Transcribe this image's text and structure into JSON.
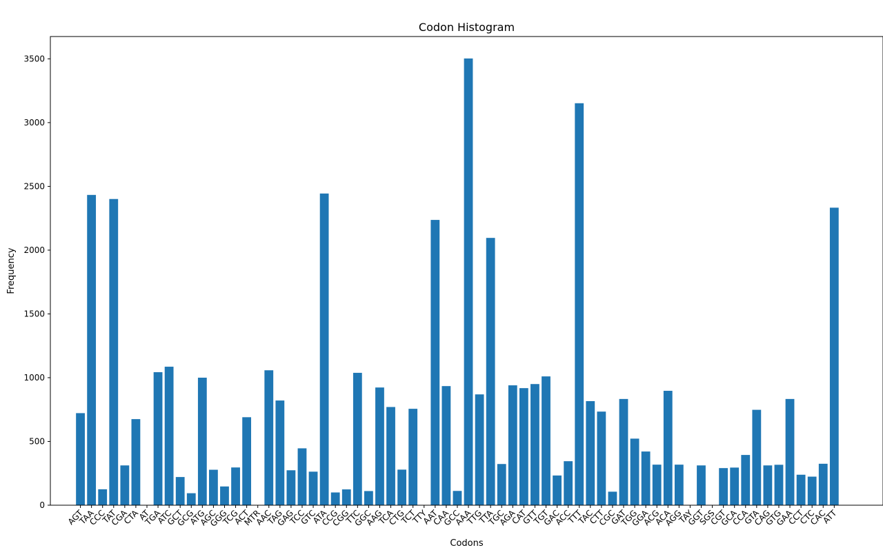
{
  "chart_data": {
    "type": "bar",
    "title": "Codon Histogram",
    "xlabel": "Codons",
    "ylabel": "Frequency",
    "ylim": [
      0,
      3675
    ],
    "yticks": [
      0,
      500,
      1000,
      1500,
      2000,
      2500,
      3000,
      3500
    ],
    "grid": false,
    "bar_color": "#1f77b4",
    "categories": [
      "AGT",
      "TAA",
      "CCC",
      "TAT",
      "CGA",
      "CTA",
      "AT",
      "TGA",
      "ATC",
      "GCT",
      "GCG",
      "ATG",
      "AGC",
      "GGG",
      "TCG",
      "ACT",
      "MTR",
      "AAC",
      "TAG",
      "GAG",
      "TCC",
      "GTC",
      "ATA",
      "CCG",
      "CGG",
      "TTC",
      "GGC",
      "AAG",
      "TCA",
      "CTG",
      "TCT",
      "TTY",
      "AAT",
      "CAA",
      "GCC",
      "AAA",
      "TTG",
      "TTA",
      "TGC",
      "AGA",
      "CAT",
      "GTT",
      "TGT",
      "GAC",
      "ACC",
      "TTT",
      "TAC",
      "CTT",
      "CGC",
      "GAT",
      "TGG",
      "GGA",
      "ACG",
      "ACA",
      "AGG",
      "TAY",
      "GGT",
      "SGS",
      "CGT",
      "GCA",
      "CCA",
      "GTA",
      "CAG",
      "GTG",
      "GAA",
      "CCT",
      "CTC",
      "CAC",
      "ATT"
    ],
    "values": [
      722,
      2433,
      125,
      2401,
      312,
      675,
      2,
      1043,
      1086,
      221,
      94,
      1000,
      278,
      147,
      296,
      690,
      2,
      1058,
      821,
      274,
      446,
      263,
      2444,
      100,
      124,
      1038,
      111,
      923,
      770,
      279,
      756,
      2,
      2237,
      934,
      112,
      3503,
      869,
      2096,
      323,
      940,
      918,
      950,
      1010,
      233,
      345,
      3152,
      816,
      734,
      106,
      833,
      522,
      421,
      318,
      897,
      318,
      2,
      312,
      2,
      291,
      295,
      394,
      748,
      312,
      317,
      833,
      239,
      224,
      325,
      2333
    ]
  }
}
